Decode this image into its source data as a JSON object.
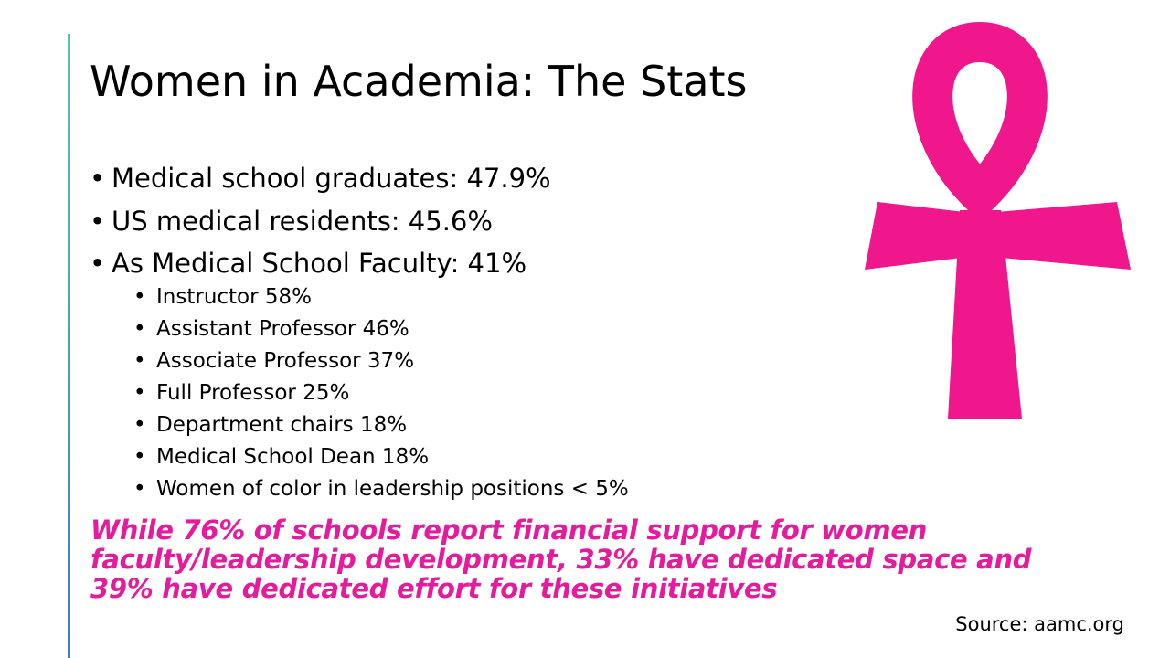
{
  "title": "Women in Academia: The Stats",
  "bullets": [
    "Medical school graduates: 47.9%",
    "US medical residents: 45.6%",
    "As Medical School Faculty: 41%"
  ],
  "sub_bullets": [
    "Instructor 58%",
    "Assistant Professor 46%",
    "Associate Professor 37%",
    "Full Professor 25%",
    "Department chairs 18%",
    "Medical School Dean 18%",
    "Women of color in leadership positions < 5%"
  ],
  "highlight": [
    "While 76% of schools report financial support for women",
    "faculty/leadership development, 33% have dedicated space and",
    "39% have dedicated effort for these initiatives"
  ],
  "source": "Source: aamc.org"
}
